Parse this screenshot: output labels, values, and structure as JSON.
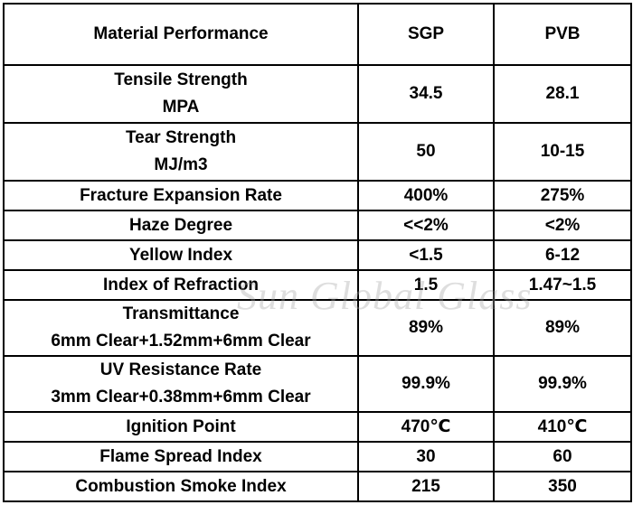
{
  "table": {
    "headers": [
      "Material Performance",
      "SGP",
      "PVB"
    ],
    "rows": [
      {
        "label": [
          "Tensile Strength",
          "MPA"
        ],
        "sgp": "34.5",
        "pvb": "28.1"
      },
      {
        "label": [
          "Tear Strength",
          "MJ/m3"
        ],
        "sgp": "50",
        "pvb": "10-15"
      },
      {
        "label": [
          "Fracture Expansion Rate"
        ],
        "sgp": "400%",
        "pvb": "275%"
      },
      {
        "label": [
          "Haze Degree"
        ],
        "sgp": "<<2%",
        "pvb": "<2%"
      },
      {
        "label": [
          "Yellow Index"
        ],
        "sgp": "<1.5",
        "pvb": "6-12"
      },
      {
        "label": [
          "Index of Refraction"
        ],
        "sgp": "1.5",
        "pvb": "1.47~1.5"
      },
      {
        "label": [
          "Transmittance",
          "6mm Clear+1.52mm+6mm Clear"
        ],
        "sgp": "89%",
        "pvb": "89%"
      },
      {
        "label": [
          "UV Resistance Rate",
          "3mm Clear+0.38mm+6mm Clear"
        ],
        "sgp": "99.9%",
        "pvb": "99.9%"
      },
      {
        "label": [
          "Ignition Point"
        ],
        "sgp": "470℃",
        "pvb": "410℃"
      },
      {
        "label": [
          "Flame Spread Index"
        ],
        "sgp": "30",
        "pvb": "60"
      },
      {
        "label": [
          "Combustion Smoke Index"
        ],
        "sgp": "215",
        "pvb": "350"
      }
    ]
  },
  "watermark": "Sun Global Glass"
}
